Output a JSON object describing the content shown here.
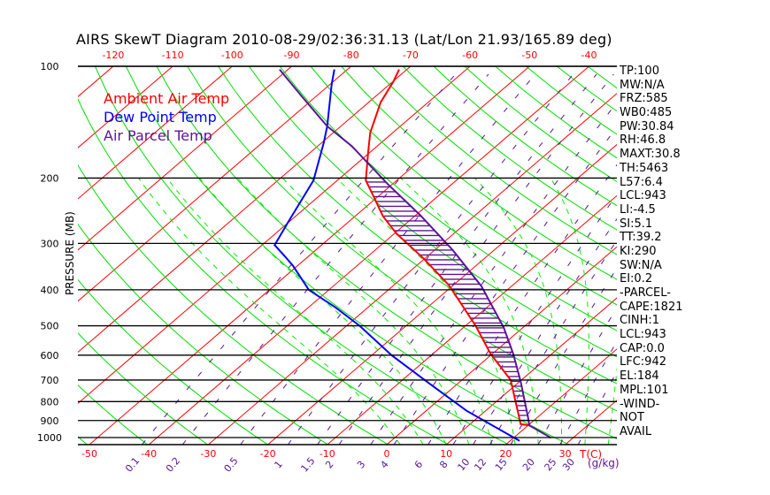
{
  "title": "AIRS SkewT Diagram 2010-08-29/02:36:31.13 (Lat/Lon 21.93/165.89 deg)",
  "colors": {
    "temp": "#ff0000",
    "dew": "#0000ff",
    "parcel": "#5a1496",
    "dry": "#00dd00",
    "moist": "#00ee00",
    "mixing": "#5a1496",
    "isotherm": "#ff0000",
    "isobar": "#000000"
  },
  "chart_data": {
    "type": "line",
    "subtype": "skew-t log-p",
    "title": "AIRS SkewT Diagram 2010-08-29/02:36:31.13 (Lat/Lon 21.93/165.89 deg)",
    "ylabel": "PRESSURE (MB)",
    "xlabel": "T(C)",
    "mixing_label": "(g/kg)",
    "ylim": [
      1045,
      100
    ],
    "pressure_ticks": [
      100,
      200,
      300,
      400,
      500,
      600,
      700,
      800,
      900,
      1000
    ],
    "top_temp_ticks": [
      -120,
      -110,
      -100,
      -90,
      -80,
      -70,
      -60,
      -50,
      -40
    ],
    "bottom_temp_ticks": [
      -50,
      -40,
      -30,
      -20,
      -10,
      0,
      10,
      20,
      30
    ],
    "mixing_ratio_ticks": [
      0.1,
      0.2,
      0.5,
      1,
      1.5,
      2,
      3,
      4,
      6,
      8,
      10,
      12,
      15,
      20,
      25,
      30
    ],
    "legend": [
      "Ambient Air Temp",
      "Dew Point Temp",
      "Air Parcel Temp"
    ],
    "legend_position": "top-left",
    "series": [
      {
        "name": "Ambient Air Temp",
        "points_p_T": [
          [
            102,
            -71.3
          ],
          [
            110,
            -69.9
          ],
          [
            125,
            -68.0
          ],
          [
            151,
            -63.8
          ],
          [
            170,
            -60.4
          ],
          [
            203,
            -55.2
          ],
          [
            227,
            -50.2
          ],
          [
            253,
            -45.4
          ],
          [
            282,
            -39.7
          ],
          [
            330,
            -30.1
          ],
          [
            389,
            -20.7
          ],
          [
            500,
            -8.3
          ],
          [
            595,
            -0.3
          ],
          [
            700,
            8.2
          ],
          [
            920,
            18.5
          ],
          [
            927,
            20.2
          ]
        ]
      },
      {
        "name": "Dew Point Temp",
        "points_p_T": [
          [
            102,
            -82.2
          ],
          [
            112,
            -79.7
          ],
          [
            145,
            -72.3
          ],
          [
            161,
            -69.6
          ],
          [
            203,
            -64.0
          ],
          [
            263,
            -60.1
          ],
          [
            303,
            -57.9
          ],
          [
            323,
            -54.3
          ],
          [
            345,
            -50.7
          ],
          [
            400,
            -43.4
          ],
          [
            446,
            -35.5
          ],
          [
            500,
            -27.8
          ],
          [
            601,
            -16.6
          ],
          [
            707,
            -5.6
          ],
          [
            847,
            6.8
          ],
          [
            1021,
            21.6
          ]
        ]
      },
      {
        "name": "Air Parcel Temp",
        "points_p_T": [
          [
            102,
            -91.4
          ],
          [
            121,
            -82.2
          ],
          [
            145,
            -72.3
          ],
          [
            164,
            -64.3
          ],
          [
            208,
            -50.7
          ],
          [
            252,
            -39.2
          ],
          [
            313,
            -26.9
          ],
          [
            391,
            -15.1
          ],
          [
            506,
            -3.2
          ],
          [
            595,
            3.5
          ],
          [
            707,
            10.2
          ],
          [
            877,
            18.2
          ],
          [
            927,
            20.2
          ],
          [
            1002,
            26.3
          ]
        ]
      }
    ],
    "dry_adiabats_theta_K": [
      220,
      230,
      240,
      250,
      260,
      270,
      280,
      290,
      300,
      310,
      320,
      330,
      340,
      350,
      360,
      370,
      380,
      390,
      400,
      410,
      420,
      430,
      440,
      450,
      460,
      470,
      480
    ],
    "moist_adiabats_T1000_C": [
      0,
      4,
      8,
      12,
      16,
      20,
      24,
      28,
      32,
      36
    ],
    "isotherms_C": [
      -160,
      -150,
      -140,
      -130,
      -120,
      -110,
      -100,
      -90,
      -80,
      -70,
      -60,
      -50,
      -40,
      -30,
      -20,
      -10,
      0,
      10,
      20,
      30,
      40
    ]
  },
  "stats": [
    "TP:100",
    "MW:N/A",
    "FRZ:585",
    "WB0:485",
    "PW:30.84",
    "RH:46.8",
    "MAXT:30.8",
    "TH:5463",
    "L57:6.4",
    "LCL:943",
    "LI:-4.5",
    "SI:5.1",
    "TT:39.2",
    "KI:290",
    "SW:N/A",
    "EI:0.2",
    "-PARCEL-",
    "CAPE:1821",
    "CINH:1",
    "LCL:943",
    "CAP:0.0",
    "LFC:942",
    "EL:184",
    "MPL:101",
    "-WIND-",
    "NOT",
    "AVAIL"
  ]
}
